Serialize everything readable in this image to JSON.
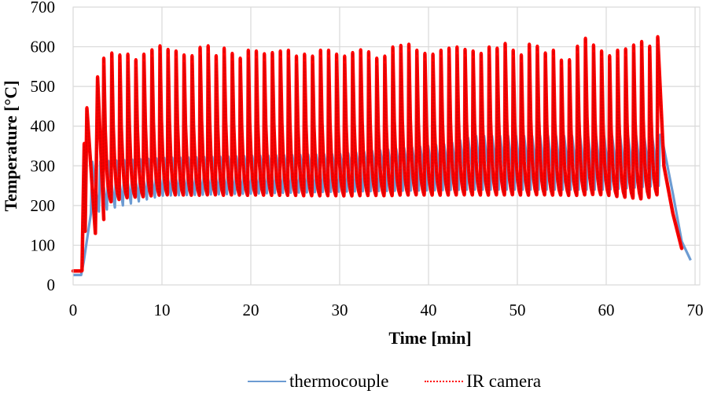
{
  "chart_data": {
    "type": "line",
    "title": "",
    "xlabel": "Time [min]",
    "ylabel": "Temperature [°C]",
    "xlim": [
      0,
      70
    ],
    "ylim": [
      0,
      700
    ],
    "x_ticks": [
      0,
      10,
      20,
      30,
      40,
      50,
      60,
      70
    ],
    "y_ticks": [
      0,
      100,
      200,
      300,
      400,
      500,
      600,
      700
    ],
    "x_tick_labels": [
      "0",
      "10",
      "20",
      "30",
      "40",
      "50",
      "60",
      "70"
    ],
    "y_tick_labels": [
      "0",
      "100",
      "200",
      "300",
      "400",
      "500",
      "600",
      "700"
    ],
    "grid": true,
    "legend_position": "bottom",
    "series": [
      {
        "name": "thermocouple",
        "color": "#6C9BD2",
        "style": "solid",
        "description": "Cyclic temperature after initial heat-up; lows ~230-250, highs ~300-320 early rising to ~370-380 after 43 min; cools to ~60 at 69.5 min",
        "initial": {
          "x": [
            0,
            0.9,
            1.2
          ],
          "y": [
            25,
            25,
            60
          ]
        },
        "cycle_start_min": 2.0,
        "cycle_end_min": 66.2,
        "cycle_min_values": [
          [
            2,
            180
          ],
          [
            10,
            225
          ],
          [
            30,
            235
          ],
          [
            45,
            240
          ],
          [
            60,
            240
          ],
          [
            66,
            250
          ]
        ],
        "cycle_max_values": [
          [
            2,
            310
          ],
          [
            10,
            320
          ],
          [
            30,
            330
          ],
          [
            42,
            355
          ],
          [
            45,
            375
          ],
          [
            60,
            375
          ],
          [
            66,
            378
          ]
        ],
        "cooldown": {
          "x": [
            66.2,
            67.5,
            68.5,
            69.5
          ],
          "y": [
            378,
            230,
            110,
            62
          ]
        }
      },
      {
        "name": "IR camera",
        "color": "#FF0000",
        "style": "dotted",
        "description": "Sharp heating spikes to ~560-620 deg C with troughs ~200-220 deg C; ~70 cycles",
        "initial": {
          "x": [
            0,
            0.9,
            1.0
          ],
          "y": [
            35,
            35,
            36
          ]
        },
        "early_peaks": [
          {
            "x": 1.25,
            "y": 355
          },
          {
            "x": 1.55,
            "y": 445
          },
          {
            "x": 2.75,
            "y": 523
          }
        ],
        "early_troughs": [
          {
            "x": 1.35,
            "y": 135
          },
          {
            "x": 2.5,
            "y": 130
          },
          {
            "x": 3.45,
            "y": 165
          }
        ],
        "cycle_period_min": 0.9,
        "first_regular_peak_min": 3.45,
        "peaks": [
          570,
          583,
          578,
          580,
          566,
          580,
          591,
          601,
          592,
          588,
          578,
          576,
          597,
          601,
          576,
          595,
          582,
          570,
          590,
          588,
          581,
          584,
          588,
          590,
          575,
          580,
          575,
          590,
          590,
          580,
          575,
          584,
          591,
          586,
          570,
          575,
          598,
          602,
          605,
          590,
          582,
          580,
          590,
          595,
          598,
          592,
          588,
          582,
          598,
          595,
          607,
          590,
          578,
          605,
          600,
          583,
          590,
          565,
          566,
          600,
          620,
          603,
          588,
          576,
          590,
          593,
          603,
          612,
          600,
          610,
          592,
          580,
          588,
          624
        ],
        "trough_values": [
          [
            3.5,
            190
          ],
          [
            6,
            205
          ],
          [
            10,
            212
          ],
          [
            20,
            212
          ],
          [
            30,
            210
          ],
          [
            40,
            212
          ],
          [
            50,
            212
          ],
          [
            60,
            212
          ],
          [
            64.5,
            200
          ],
          [
            65.5,
            212
          ]
        ],
        "last_peak": {
          "x": 65.8,
          "y": 624
        },
        "cooldown": {
          "x": [
            65.8,
            66.5,
            67.5,
            68.5
          ],
          "y": [
            624,
            300,
            180,
            92
          ]
        }
      }
    ]
  },
  "legend": {
    "items": [
      {
        "label": "thermocouple",
        "color": "#6C9BD2",
        "style": "solid"
      },
      {
        "label": "IR camera",
        "color": "#FF0000",
        "style": "dotted"
      }
    ]
  },
  "colors": {
    "grid": "#D9D9D9",
    "plot_border": "#D9D9D9",
    "thermocouple": "#6C9BD2",
    "ir_camera": "#FF0000"
  }
}
